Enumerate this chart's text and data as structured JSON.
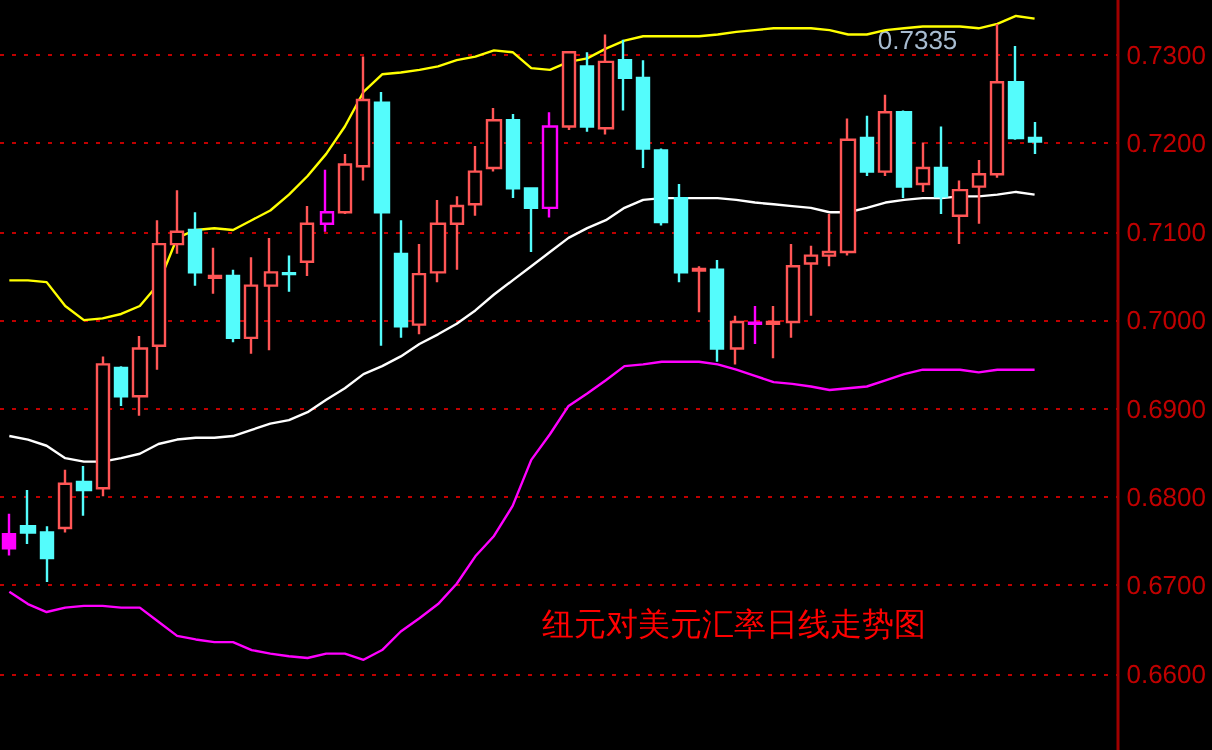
{
  "chart_data": {
    "type": "candlestick",
    "title": "纽元对美元汇率日线走势图",
    "categories": [
      null,
      null,
      null,
      null,
      null,
      null,
      null,
      null,
      null,
      null,
      null,
      null,
      null,
      null,
      null,
      null,
      null,
      null,
      null,
      null,
      null,
      null,
      null,
      null,
      null,
      null,
      null,
      null,
      null,
      null,
      null,
      null,
      null,
      null,
      null,
      null,
      null,
      null,
      null,
      null,
      null,
      null,
      null,
      null,
      null,
      null,
      null,
      null,
      null,
      null,
      null,
      null,
      null,
      null,
      null,
      null,
      null,
      null,
      null,
      null
    ],
    "series": [
      {
        "colors": [
          "#ff00ff",
          "#54fcfc",
          "#54fcfc",
          "#ff5656",
          "#54fcfc",
          "#ff5656",
          "#54fcfc",
          "#ff5656",
          "#ff5656",
          "#ff5656",
          "#54fcfc",
          "#ff5656",
          "#54fcfc",
          "#ff5656",
          "#ff5656",
          "#54fcfc",
          "#ff5656",
          "#ff00ff",
          "#ff5656",
          "#ff5656",
          "#54fcfc",
          "#54fcfc",
          "#ff5656",
          "#ff5656",
          "#ff5656",
          "#ff5656",
          "#ff5656",
          "#54fcfc",
          "#54fcfc",
          "#ff00ff",
          "#ff5656",
          "#54fcfc",
          "#ff5656",
          "#54fcfc",
          "#54fcfc",
          "#54fcfc",
          "#54fcfc",
          "#ff5656",
          "#54fcfc",
          "#ff5656",
          "#ff00ff",
          "#ff5656",
          "#ff5656",
          "#ff5656",
          "#ff5656",
          "#ff5656",
          "#54fcfc",
          "#ff5656",
          "#54fcfc",
          "#ff5656",
          "#54fcfc",
          "#ff5656",
          "#ff5656",
          "#ff5656",
          "#54fcfc",
          "#54fcfc",
          null,
          null,
          null,
          null
        ],
        "ohlc": [
          [
            0.6758,
            0.6781,
            0.6734,
            0.6742
          ],
          [
            0.6767,
            0.6808,
            0.6747,
            0.676
          ],
          [
            0.676,
            0.6767,
            0.6704,
            0.6731
          ],
          [
            0.6765,
            0.6831,
            0.676,
            0.6815
          ],
          [
            0.6817,
            0.6835,
            0.6779,
            0.6808
          ],
          [
            0.681,
            0.6959,
            0.6801,
            0.695
          ],
          [
            0.6946,
            0.6948,
            0.6903,
            0.6914
          ],
          [
            0.6914,
            0.6982,
            0.6892,
            0.6968
          ],
          [
            0.6971,
            0.7113,
            0.6944,
            0.7086
          ],
          [
            0.7086,
            0.7147,
            0.7075,
            0.71
          ],
          [
            0.7102,
            0.7122,
            0.7039,
            0.7054
          ],
          [
            0.7048,
            0.7082,
            0.703,
            0.705
          ],
          [
            0.705,
            0.7057,
            0.6975,
            0.698
          ],
          [
            0.698,
            0.7071,
            0.6962,
            0.7039
          ],
          [
            0.7039,
            0.7093,
            0.6966,
            0.7054
          ],
          [
            0.7053,
            0.7073,
            0.7032,
            0.7052
          ],
          [
            0.7066,
            0.7129,
            0.705,
            0.7109
          ],
          [
            0.7109,
            0.717,
            0.71,
            0.7122
          ],
          [
            0.7122,
            0.7188,
            0.712,
            0.7176
          ],
          [
            0.7174,
            0.7298,
            0.7158,
            0.7249
          ],
          [
            0.7246,
            0.7258,
            0.6971,
            0.7122
          ],
          [
            0.7075,
            0.7113,
            0.698,
            0.6993
          ],
          [
            0.6995,
            0.7086,
            0.6984,
            0.7052
          ],
          [
            0.7054,
            0.7136,
            0.7043,
            0.7109
          ],
          [
            0.7109,
            0.714,
            0.7057,
            0.7129
          ],
          [
            0.7131,
            0.7197,
            0.7118,
            0.7168
          ],
          [
            0.7172,
            0.724,
            0.7168,
            0.7226
          ],
          [
            0.7226,
            0.7233,
            0.7138,
            0.7149
          ],
          [
            0.7149,
            0.7149,
            0.7077,
            0.7127
          ],
          [
            0.7127,
            0.7235,
            0.7116,
            0.7219
          ],
          [
            0.7219,
            0.7303,
            0.7215,
            0.7303
          ],
          [
            0.7287,
            0.7303,
            0.7213,
            0.7219
          ],
          [
            0.7217,
            0.7323,
            0.721,
            0.7292
          ],
          [
            0.7294,
            0.7317,
            0.7237,
            0.7274
          ],
          [
            0.7274,
            0.7294,
            0.7172,
            0.7194
          ],
          [
            0.7192,
            0.7194,
            0.7107,
            0.7111
          ],
          [
            0.7138,
            0.7154,
            0.7043,
            0.7054
          ],
          [
            0.7056,
            0.7061,
            0.7009,
            0.7058
          ],
          [
            0.7057,
            0.7068,
            0.6953,
            0.6968
          ],
          [
            0.6968,
            0.7005,
            0.695,
            0.6998
          ],
          [
            0.6996,
            0.7016,
            0.6973,
            0.6997
          ],
          [
            0.6996,
            0.7016,
            0.6957,
            0.6998
          ],
          [
            0.6998,
            0.7086,
            0.698,
            0.7061
          ],
          [
            0.7064,
            0.7084,
            0.7005,
            0.7073
          ],
          [
            0.7073,
            0.712,
            0.7061,
            0.7077
          ],
          [
            0.7077,
            0.7228,
            0.7073,
            0.7204
          ],
          [
            0.7206,
            0.7231,
            0.7163,
            0.7168
          ],
          [
            0.7168,
            0.7255,
            0.7163,
            0.7235
          ],
          [
            0.7235,
            0.7237,
            0.7138,
            0.7151
          ],
          [
            0.7154,
            0.7201,
            0.7145,
            0.7172
          ],
          [
            0.7172,
            0.7219,
            0.712,
            0.714
          ],
          [
            0.7118,
            0.7158,
            0.7086,
            0.7147
          ],
          [
            0.7151,
            0.7181,
            0.7109,
            0.7165
          ],
          [
            0.7165,
            0.7335,
            0.7161,
            0.7269
          ],
          [
            0.7269,
            0.731,
            0.7204,
            0.7206
          ],
          [
            0.7206,
            0.7224,
            0.7188,
            0.7202
          ],
          null,
          null,
          null,
          null
        ]
      },
      {
        "type": "line",
        "color": "#ffff00",
        "values": [
          0.7045,
          0.7045,
          0.7043,
          0.7016,
          0.7,
          0.7002,
          0.7007,
          0.7016,
          0.7041,
          0.7093,
          0.7102,
          0.7104,
          0.7102,
          0.7113,
          0.7124,
          0.7142,
          0.7163,
          0.7188,
          0.7219,
          0.7258,
          0.7278,
          0.728,
          0.7283,
          0.7287,
          0.7294,
          0.7298,
          0.7305,
          0.7303,
          0.7285,
          0.7283,
          0.7292,
          0.7296,
          0.7307,
          0.7316,
          0.7321,
          0.7321,
          0.7321,
          0.7321,
          0.7323,
          0.7326,
          0.7328,
          0.733,
          0.733,
          0.733,
          0.7328,
          0.7323,
          0.7323,
          0.7328,
          0.733,
          0.7332,
          0.7332,
          0.7332,
          0.733,
          0.7335,
          0.7344,
          0.7341,
          null,
          null,
          null,
          null
        ]
      },
      {
        "type": "line",
        "color": "#ffffff",
        "values": [
          0.6869,
          0.6865,
          0.6858,
          0.6844,
          0.684,
          0.684,
          0.6844,
          0.6849,
          0.686,
          0.6865,
          0.6867,
          0.6867,
          0.6869,
          0.6876,
          0.6883,
          0.6887,
          0.6896,
          0.691,
          0.6923,
          0.6939,
          0.6948,
          0.6959,
          0.6973,
          0.6984,
          0.6996,
          0.7011,
          0.7029,
          0.7045,
          0.7061,
          0.7077,
          0.7093,
          0.7104,
          0.7113,
          0.7127,
          0.7136,
          0.7138,
          0.7138,
          0.7138,
          0.7138,
          0.7136,
          0.7133,
          0.7131,
          0.7129,
          0.7127,
          0.7122,
          0.7122,
          0.7127,
          0.7133,
          0.7136,
          0.7138,
          0.7138,
          0.714,
          0.714,
          0.7142,
          0.7145,
          0.7142,
          null,
          null,
          null,
          null
        ]
      },
      {
        "type": "line",
        "color": "#ff00ff",
        "values": [
          0.6693,
          0.6679,
          0.667,
          0.6675,
          0.6677,
          0.6677,
          0.6675,
          0.6675,
          0.6659,
          0.6643,
          0.6639,
          0.6636,
          0.6636,
          0.6627,
          0.6623,
          0.662,
          0.6618,
          0.6623,
          0.6623,
          0.6616,
          0.6627,
          0.6648,
          0.6663,
          0.6679,
          0.6702,
          0.6733,
          0.6756,
          0.679,
          0.6842,
          0.6871,
          0.6903,
          0.6917,
          0.6932,
          0.6948,
          0.695,
          0.6953,
          0.6953,
          0.6953,
          0.695,
          0.6944,
          0.6937,
          0.693,
          0.6928,
          0.6925,
          0.6921,
          0.6923,
          0.6925,
          0.6932,
          0.6939,
          0.6944,
          0.6944,
          0.6944,
          0.6941,
          0.6944,
          0.6944,
          0.6944,
          null,
          null,
          null,
          null
        ]
      }
    ],
    "ylim": [
      0.6514,
      0.7362
    ],
    "yticks": [
      {
        "value": 0.66,
        "label": "0.6600"
      },
      {
        "value": 0.67,
        "label": "0.6700"
      },
      {
        "value": 0.68,
        "label": "0.6800"
      },
      {
        "value": 0.69,
        "label": "0.6900"
      },
      {
        "value": 0.7,
        "label": "0.7000"
      },
      {
        "value": 0.71,
        "label": "0.7100"
      },
      {
        "value": 0.72,
        "label": "0.7200"
      },
      {
        "value": 0.73,
        "label": "0.7300"
      }
    ],
    "annotations": [
      {
        "text": "0.7335",
        "y": 0.7335
      }
    ],
    "grid": "y",
    "tick_labels": "y",
    "marker": "none",
    "line_style": "solid"
  }
}
